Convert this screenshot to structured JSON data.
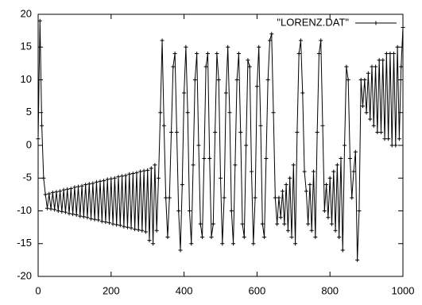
{
  "chart_data": {
    "type": "line",
    "x": [
      0,
      5,
      10,
      15,
      20,
      25,
      30,
      35,
      40,
      45,
      50,
      55,
      60,
      65,
      70,
      75,
      80,
      85,
      90,
      95,
      100,
      105,
      110,
      115,
      120,
      125,
      130,
      135,
      140,
      145,
      150,
      155,
      160,
      165,
      170,
      175,
      180,
      185,
      190,
      195,
      200,
      205,
      210,
      215,
      220,
      225,
      230,
      235,
      240,
      245,
      250,
      255,
      260,
      265,
      270,
      275,
      280,
      285,
      290,
      295,
      300,
      305,
      310,
      315,
      320,
      325,
      330,
      335,
      340,
      345,
      350,
      355,
      360,
      365,
      370,
      375,
      380,
      385,
      390,
      395,
      400,
      405,
      410,
      415,
      420,
      425,
      430,
      435,
      440,
      445,
      450,
      455,
      460,
      465,
      470,
      475,
      480,
      485,
      490,
      495,
      500,
      505,
      510,
      515,
      520,
      525,
      530,
      535,
      540,
      545,
      550,
      555,
      560,
      565,
      570,
      575,
      580,
      585,
      590,
      595,
      600,
      605,
      610,
      615,
      620,
      625,
      630,
      635,
      640,
      645,
      650,
      655,
      660,
      665,
      670,
      675,
      680,
      685,
      690,
      695,
      700,
      705,
      710,
      715,
      720,
      725,
      730,
      735,
      740,
      745,
      750,
      755,
      760,
      765,
      770,
      775,
      780,
      785,
      790,
      795,
      800,
      805,
      810,
      815,
      820,
      825,
      830,
      835,
      840,
      845,
      850,
      855,
      860,
      865,
      870,
      875,
      880,
      885,
      890,
      895,
      900,
      905,
      910,
      915,
      920,
      925,
      930,
      935,
      940,
      945,
      950,
      955,
      960,
      965,
      970,
      975,
      980,
      985,
      990,
      995,
      1000
    ],
    "series": [
      {
        "name": "\"LORENZ.DAT\"",
        "color": "#000000",
        "values": [
          1,
          19,
          3,
          -5,
          -7.5,
          -9.6,
          -7.4,
          -9.7,
          -7.2,
          -9.8,
          -7.1,
          -10.0,
          -7.0,
          -10.1,
          -6.8,
          -10.2,
          -6.7,
          -10.4,
          -6.6,
          -10.5,
          -6.4,
          -10.6,
          -6.3,
          -10.8,
          -6.2,
          -10.9,
          -6.0,
          -11.0,
          -5.9,
          -11.2,
          -5.8,
          -11.3,
          -5.6,
          -11.4,
          -5.5,
          -11.6,
          -5.4,
          -11.7,
          -5.2,
          -11.8,
          -5.1,
          -12.0,
          -5.0,
          -12.1,
          -4.8,
          -12.2,
          -4.7,
          -12.4,
          -4.6,
          -12.5,
          -4.4,
          -12.6,
          -4.3,
          -12.8,
          -4.2,
          -12.9,
          -4.0,
          -13.0,
          -3.9,
          -13.2,
          -3.8,
          -14.5,
          -3.5,
          -15.0,
          -3.0,
          -13,
          -5,
          5,
          16,
          3,
          -8,
          -14,
          -8,
          2,
          12,
          14,
          2,
          -10,
          -16,
          -6,
          8,
          15,
          5,
          -10,
          -15,
          -3,
          10,
          14,
          0,
          -12,
          -14,
          -2,
          12,
          14,
          -2,
          -14,
          -12,
          2,
          14,
          10,
          -5,
          -15,
          -8,
          8,
          15,
          5,
          -10,
          -15,
          -3,
          10,
          14,
          2,
          -12,
          -14,
          0,
          13,
          12,
          -4,
          -15,
          -8,
          9,
          15,
          3,
          -12,
          -14,
          -2,
          10,
          16,
          17,
          5,
          -8,
          -12,
          -8,
          -11,
          -7,
          -12,
          -6,
          -13,
          -5,
          -14,
          -3,
          -15,
          2,
          14,
          16,
          8,
          -4,
          -7,
          -12,
          -6,
          -13,
          -4,
          -14,
          2,
          14,
          16,
          3,
          -10,
          -6,
          -11,
          -5,
          -12,
          -4,
          -13,
          -3,
          -14,
          -2,
          -16,
          0,
          12,
          10,
          -2,
          -8,
          -4,
          -1,
          -17.5,
          -10,
          10,
          6,
          10,
          5,
          11,
          4,
          12,
          3,
          12,
          2,
          13,
          2,
          13,
          1,
          14,
          1,
          14,
          0,
          14,
          0,
          15,
          1,
          12,
          18
        ]
      }
    ],
    "xlim": [
      0,
      1000
    ],
    "xticks": [
      0,
      200,
      400,
      600,
      800,
      1000
    ],
    "ylim": [
      -20,
      20
    ],
    "yticks": [
      -20,
      -15,
      -10,
      -5,
      0,
      5,
      10,
      15,
      20
    ],
    "grid": false,
    "legend": "top-right"
  }
}
